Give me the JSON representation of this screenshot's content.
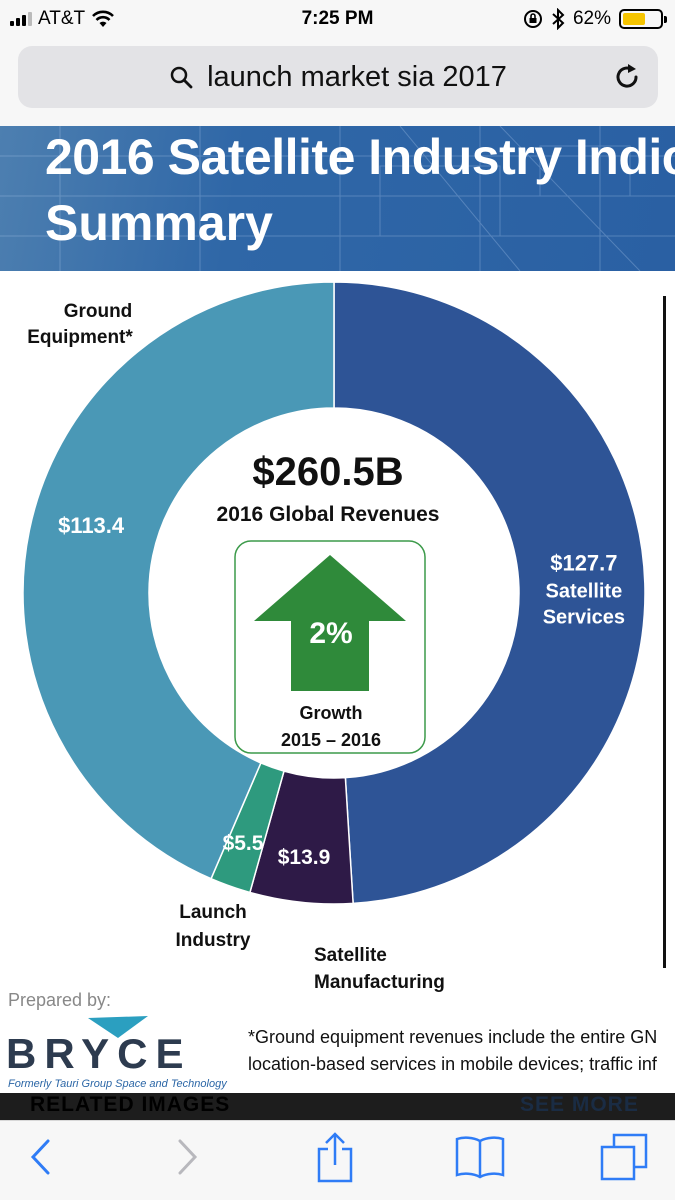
{
  "status_bar": {
    "carrier": "AT&T",
    "time": "7:25 PM",
    "battery_percent": "62%",
    "battery_level": 0.62,
    "battery_color": "#f5c400"
  },
  "url_bar": {
    "query": "launch market sia 2017",
    "search_icon": "search-icon",
    "reload_icon": "reload-icon"
  },
  "infographic": {
    "title_line1": "2016 Satellite Industry Indic",
    "title_line2": "Summary",
    "prepared_by": "Prepared by:",
    "logo_text": "BRYCE",
    "logo_subtext": "Formerly Tauri Group Space and Technology",
    "footnote_line1": "*Ground equipment revenues include the entire GN",
    "footnote_line2": "location-based services in mobile devices; traffic inf"
  },
  "chart_data": {
    "type": "donut",
    "center_value": "$260.5B",
    "center_label": "2016 Global Revenues",
    "growth_value": "2%",
    "growth_label_line1": "Growth",
    "growth_label_line2": "2015 – 2016",
    "series": [
      {
        "name_line1": "Satellite",
        "name_line2": "Services",
        "value": 127.7,
        "value_label": "$127.7",
        "color": "#2e5496"
      },
      {
        "name_line1": "Satellite",
        "name_line2": "Manufacturing",
        "value": 13.9,
        "value_label": "$13.9",
        "color": "#2e1a47"
      },
      {
        "name_line1": "Launch",
        "name_line2": "Industry",
        "value": 5.5,
        "value_label": "$5.5",
        "color": "#2e9a7e"
      },
      {
        "name_line1": "Ground",
        "name_line2": "Equipment*",
        "value": 113.4,
        "value_label": "$113.4",
        "color": "#4a98b6"
      }
    ],
    "total": 260.5
  },
  "related": {
    "title": "RELATED IMAGES",
    "see_more": "SEE MORE"
  },
  "toolbar": {
    "icons": [
      "back-icon",
      "forward-icon",
      "share-icon",
      "bookmarks-icon",
      "tabs-icon"
    ]
  }
}
